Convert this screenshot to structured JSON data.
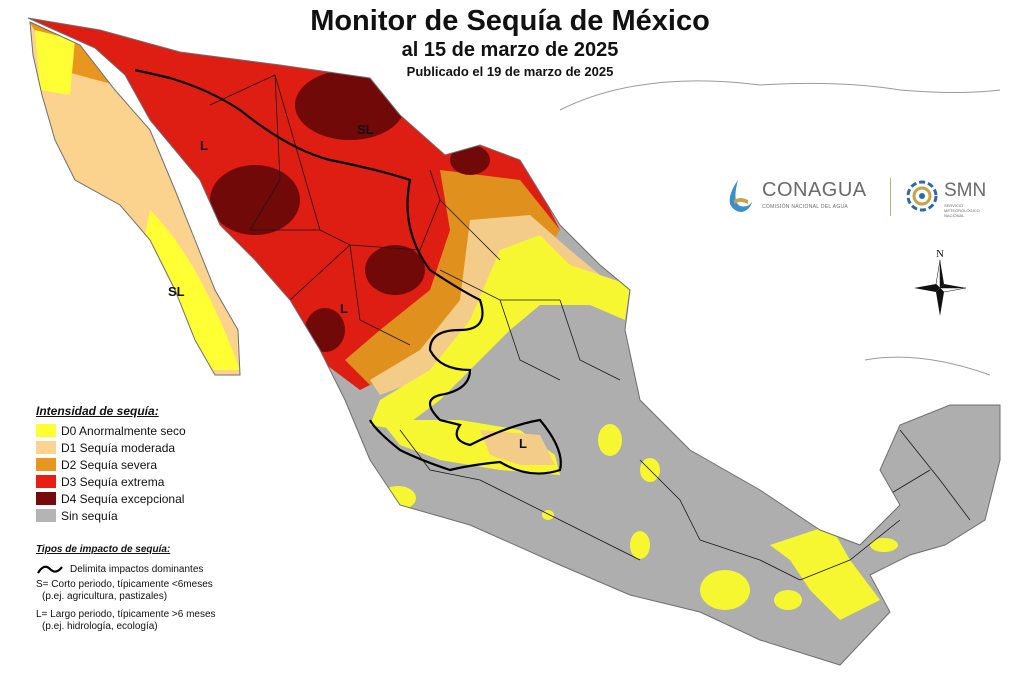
{
  "title": {
    "main": "Monitor de Sequía de México",
    "date": "al 15 de marzo de 2025",
    "published": "Publicado el 19 de marzo de 2025"
  },
  "logos": {
    "conagua_name": "CONAGUA",
    "conagua_sub": "COMISIÓN NACIONAL DEL AGUA",
    "smn_name": "SMN",
    "smn_sub": "SERVICIO METEOROLÓGICO NACIONAL"
  },
  "compass": {
    "north": "N"
  },
  "legend": {
    "title": "Intensidad de sequía:",
    "categories": [
      {
        "label": "D0 Anormalmente seco",
        "color": "#ffff33"
      },
      {
        "label": "D1 Sequía moderada",
        "color": "#fcd38e"
      },
      {
        "label": "D2 Sequía severa",
        "color": "#e8961e"
      },
      {
        "label": "D3 Sequía extrema",
        "color": "#e61e14"
      },
      {
        "label": "D4 Sequía excepcional",
        "color": "#760a0a"
      },
      {
        "label": "Sin sequía",
        "color": "#b4b4b4"
      }
    ]
  },
  "impact": {
    "title": "Tipos de impacto de sequía:",
    "line_label": "Delimita impactos dominantes",
    "short": "S= Corto periodo, típicamente <6meses",
    "short_example": "(p.ej. agricultura, pastizales)",
    "long": "L= Largo periodo, típicamente >6 meses",
    "long_example": "(p.ej. hidrología, ecología)"
  },
  "map_labels": {
    "baja_sur": "SL",
    "sonora": "L",
    "chihuahua": "SL",
    "sinaloa": "L",
    "bajio": "L"
  },
  "colors": {
    "no_drought": "#b4b4b4",
    "land_abroad": "#ffffff",
    "coast": "#6e6e6e",
    "state_border": "#1a1a1a"
  }
}
